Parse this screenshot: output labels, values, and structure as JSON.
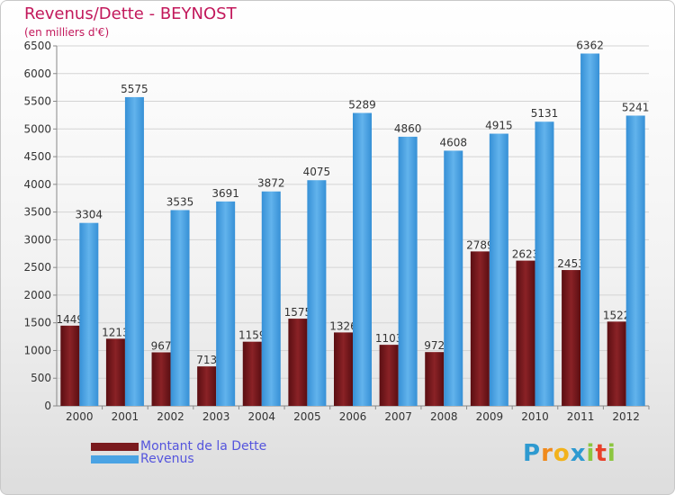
{
  "header": {
    "title": "Revenus/Dette - BEYNOST",
    "subtitle": "(en milliers d'€)"
  },
  "legend": {
    "debt_label": "Montant de la Dette",
    "revenue_label": "Revenus"
  },
  "logo": {
    "letters": [
      "P",
      "r",
      "o",
      "x",
      "i",
      "t",
      "i"
    ],
    "colors": [
      "#2e9ad0",
      "#f08a1c",
      "#f2b21b",
      "#2e9ad0",
      "#8cc63f",
      "#e8402a",
      "#8cc63f"
    ]
  },
  "colors": {
    "debt": "#7a1a1e",
    "revenue": "#4aa3e4",
    "title": "#c2185b",
    "legend_text": "#5555dd"
  },
  "chart_data": {
    "type": "bar",
    "title": "Revenus/Dette - BEYNOST",
    "subtitle": "(en milliers d'€)",
    "categories": [
      "2000",
      "2001",
      "2002",
      "2003",
      "2004",
      "2005",
      "2006",
      "2007",
      "2008",
      "2009",
      "2010",
      "2011",
      "2012"
    ],
    "series": [
      {
        "name": "Montant de la Dette",
        "values": [
          1449,
          1213,
          967,
          713,
          1159,
          1575,
          1326,
          1103,
          972,
          2789,
          2623,
          2453,
          1522
        ]
      },
      {
        "name": "Revenus",
        "values": [
          3304,
          5575,
          3535,
          3691,
          3872,
          4075,
          5289,
          4860,
          4608,
          4915,
          5131,
          6362,
          5241
        ]
      }
    ],
    "ylim": [
      0,
      6500
    ],
    "yticks": [
      0,
      500,
      1000,
      1500,
      2000,
      2500,
      3000,
      3500,
      4000,
      4500,
      5000,
      5500,
      6000,
      6500
    ],
    "grid": true,
    "legend_position": "bottom-left"
  }
}
